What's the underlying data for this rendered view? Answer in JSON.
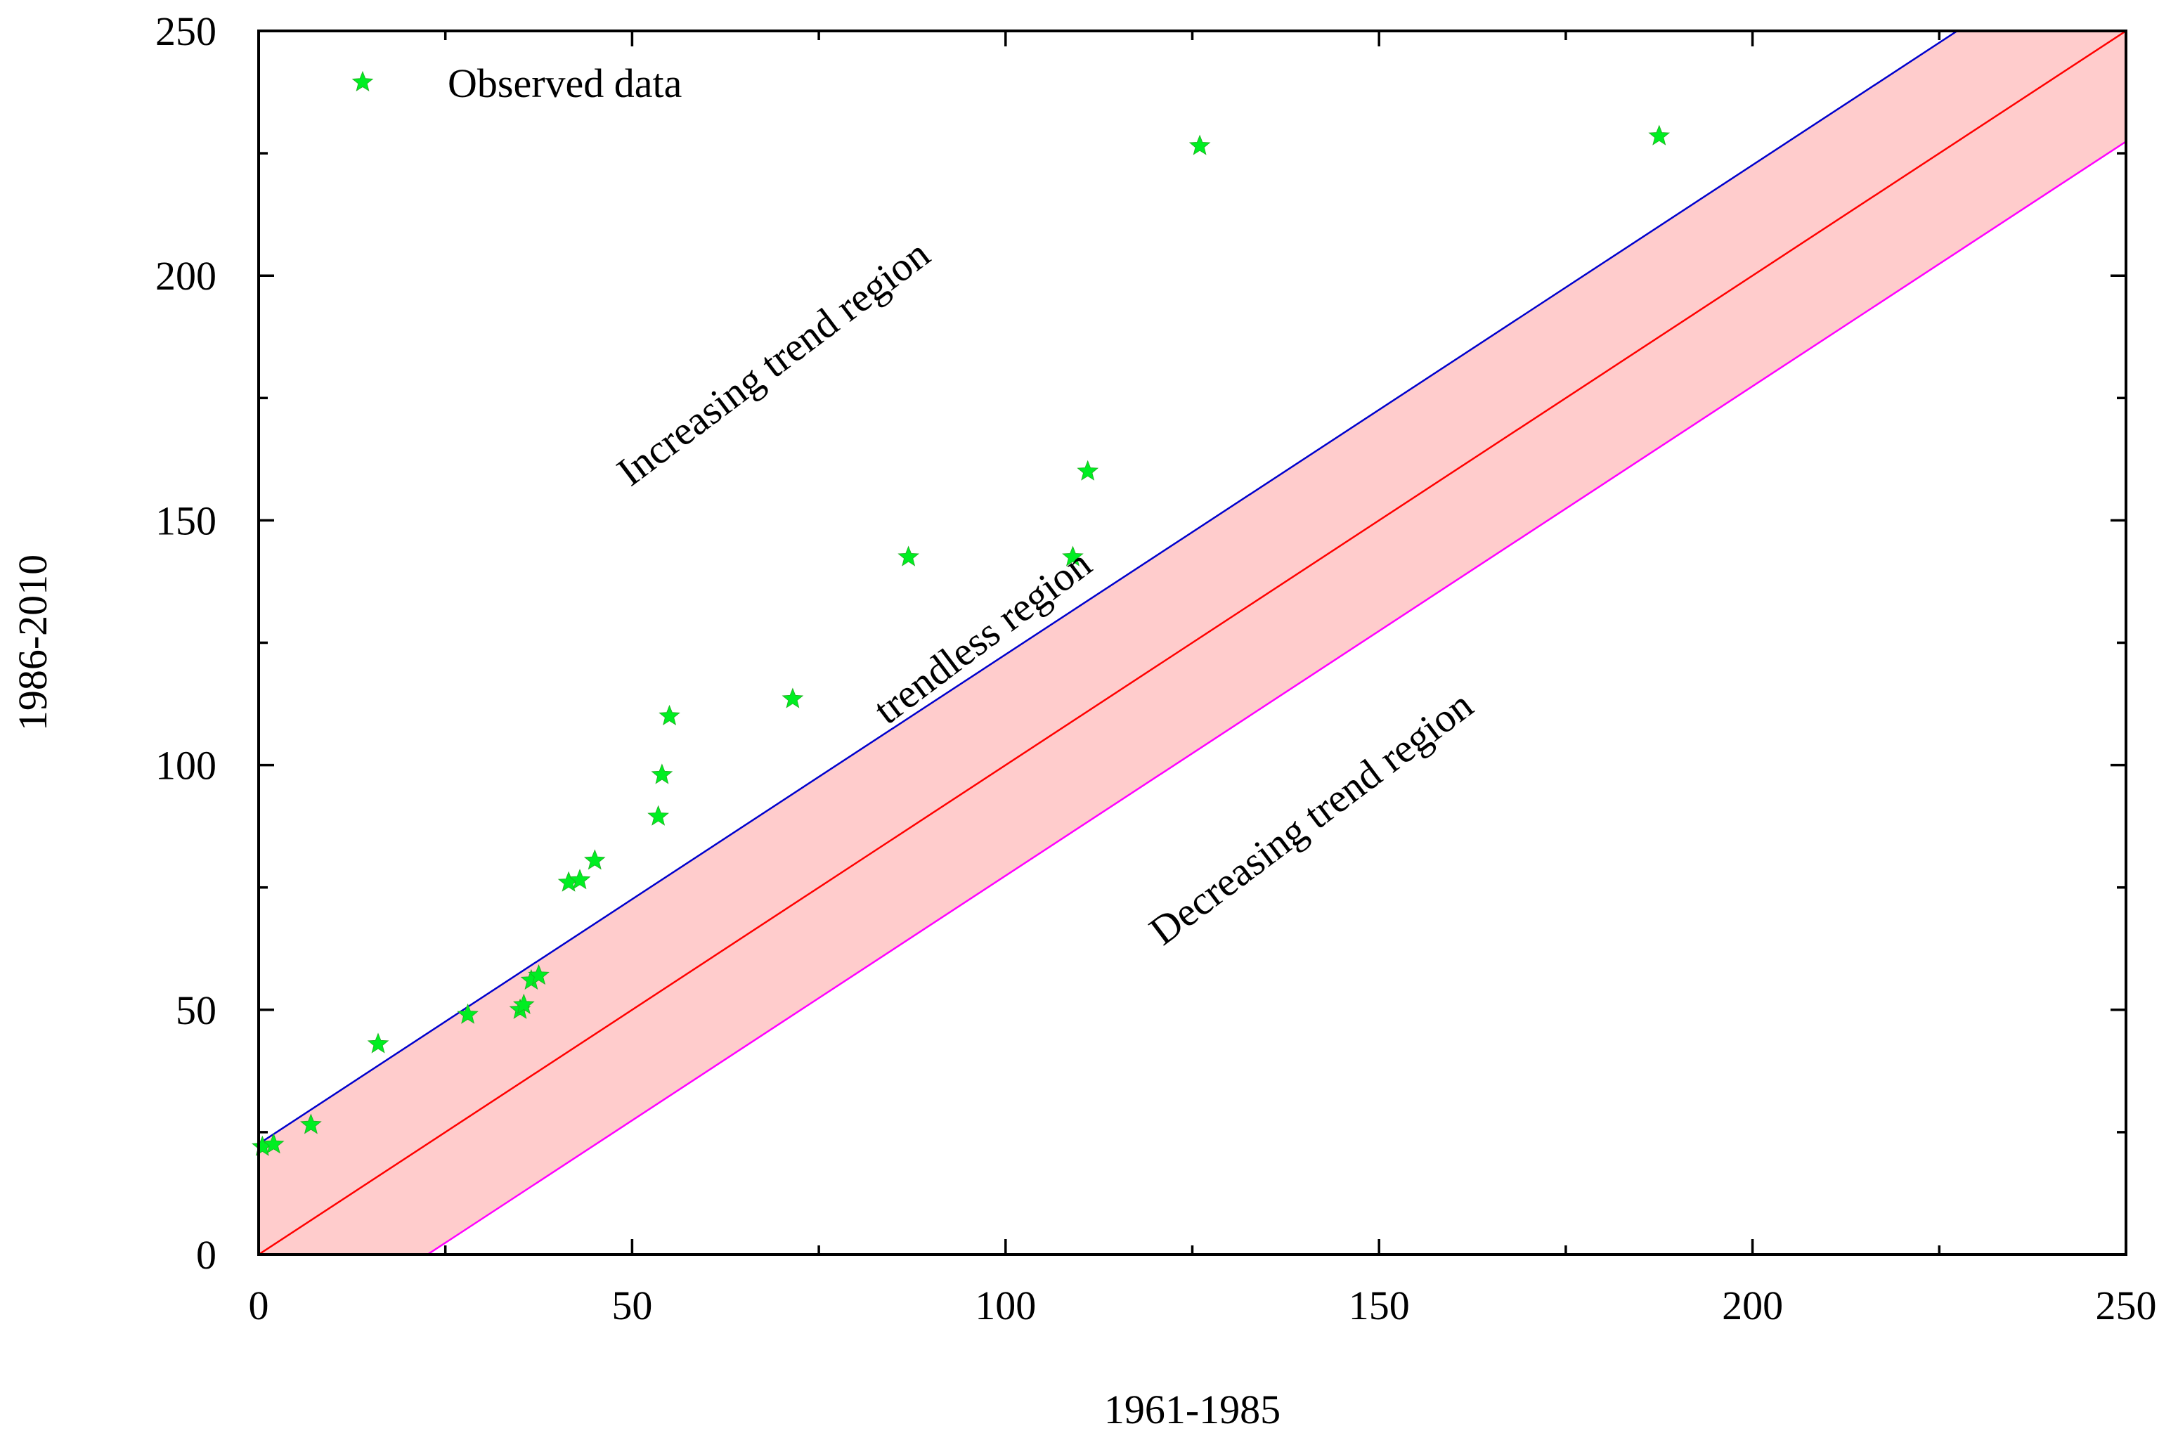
{
  "chart_data": {
    "type": "scatter",
    "xlabel": "1961-1985",
    "ylabel": "1986-2010",
    "xlim": [
      0,
      250
    ],
    "ylim": [
      0,
      250
    ],
    "x_major_ticks": [
      0,
      50,
      100,
      150,
      200,
      250
    ],
    "y_major_ticks": [
      0,
      50,
      100,
      150,
      200,
      250
    ],
    "x_tick_labels": [
      "0",
      "50",
      "100",
      "150",
      "200",
      "250"
    ],
    "y_tick_labels": [
      "0",
      "50",
      "100",
      "150",
      "200",
      "250"
    ],
    "minor_tick_step": 25,
    "grid": false,
    "legend": {
      "position": "top-left",
      "entries": [
        {
          "label": "Observed data",
          "marker": "star",
          "color": "#00ee22"
        }
      ]
    },
    "band": {
      "name": "trendless region",
      "offset": 22.6,
      "fill_color": "#ffcccc",
      "center_line": {
        "slope": 1,
        "intercept": 0,
        "color": "#ff0000"
      },
      "upper_line": {
        "slope": 1,
        "intercept": 22.6,
        "color": "#0000cc"
      },
      "lower_line": {
        "slope": 1,
        "intercept": -22.6,
        "color": "#ff00ff"
      }
    },
    "annotations": [
      {
        "text": "Increasing trend region",
        "x": 70,
        "y": 180,
        "rotation_deg": -37
      },
      {
        "text": "trendless region",
        "x": 98,
        "y": 124,
        "rotation_deg": -37
      },
      {
        "text": "Decreasing trend region",
        "x": 142,
        "y": 87,
        "rotation_deg": -37
      }
    ],
    "series": [
      {
        "name": "Observed data",
        "marker": "star",
        "color": "#00ee22",
        "points": [
          {
            "x": 0.5,
            "y": 22
          },
          {
            "x": 2,
            "y": 22.5
          },
          {
            "x": 7,
            "y": 26.5
          },
          {
            "x": 16,
            "y": 43
          },
          {
            "x": 28,
            "y": 49
          },
          {
            "x": 35,
            "y": 50
          },
          {
            "x": 35.5,
            "y": 51
          },
          {
            "x": 36.5,
            "y": 56
          },
          {
            "x": 37.5,
            "y": 57
          },
          {
            "x": 41.5,
            "y": 76
          },
          {
            "x": 43,
            "y": 76.5
          },
          {
            "x": 45,
            "y": 80.5
          },
          {
            "x": 53.5,
            "y": 89.5
          },
          {
            "x": 54,
            "y": 98
          },
          {
            "x": 55,
            "y": 110
          },
          {
            "x": 71.5,
            "y": 113.5
          },
          {
            "x": 87,
            "y": 142.5
          },
          {
            "x": 109,
            "y": 142.5
          },
          {
            "x": 111,
            "y": 160
          },
          {
            "x": 126,
            "y": 226.5
          },
          {
            "x": 187.5,
            "y": 228.5
          }
        ]
      }
    ]
  }
}
